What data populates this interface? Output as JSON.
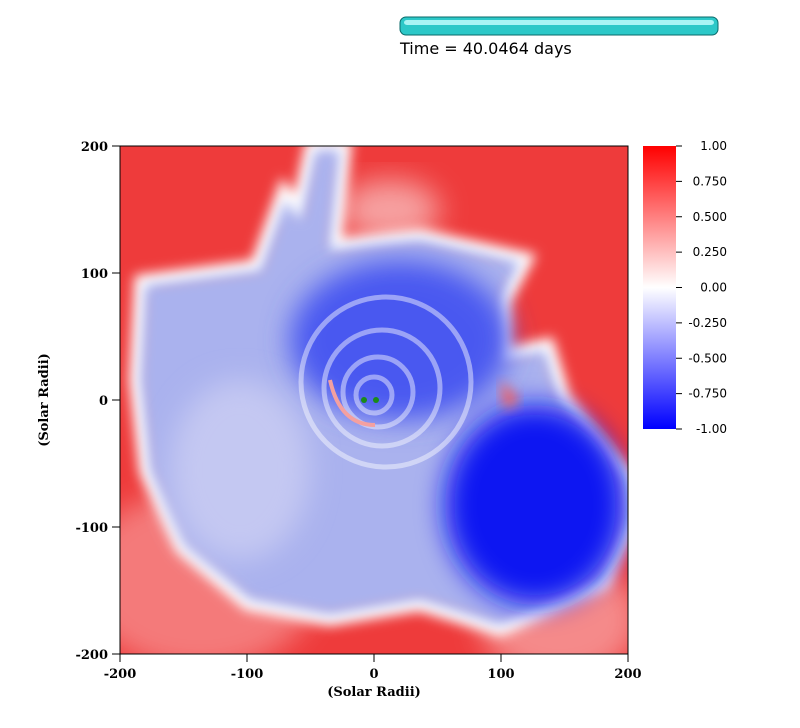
{
  "chart_data": {
    "type": "pseudocolor",
    "title": "Time = 40.0464 days",
    "x_label": "(Solar Radii)",
    "y_label": "(Solar Radii)",
    "xlim": [
      -200,
      200
    ],
    "ylim": [
      -200,
      200
    ],
    "xticks": [
      -200,
      -100,
      0,
      100,
      200
    ],
    "yticks": [
      -200,
      -100,
      0,
      100,
      200
    ],
    "colorbar": {
      "lim": [
        -1,
        1
      ],
      "colors": [
        "#0000ff",
        "#ffffff",
        "#ff0000"
      ],
      "ticks": [
        {
          "value": 1,
          "label": "1.00"
        },
        {
          "value": 0.75,
          "label": "0.750"
        },
        {
          "value": 0.5,
          "label": "0.500"
        },
        {
          "value": 0.25,
          "label": "0.250"
        },
        {
          "value": 0,
          "label": "0.00"
        },
        {
          "value": -0.25,
          "label": "-0.250"
        },
        {
          "value": -0.5,
          "label": "-0.500"
        },
        {
          "value": -0.75,
          "label": "-0.750"
        },
        {
          "value": -1,
          "label": "-1.00"
        }
      ]
    }
  }
}
